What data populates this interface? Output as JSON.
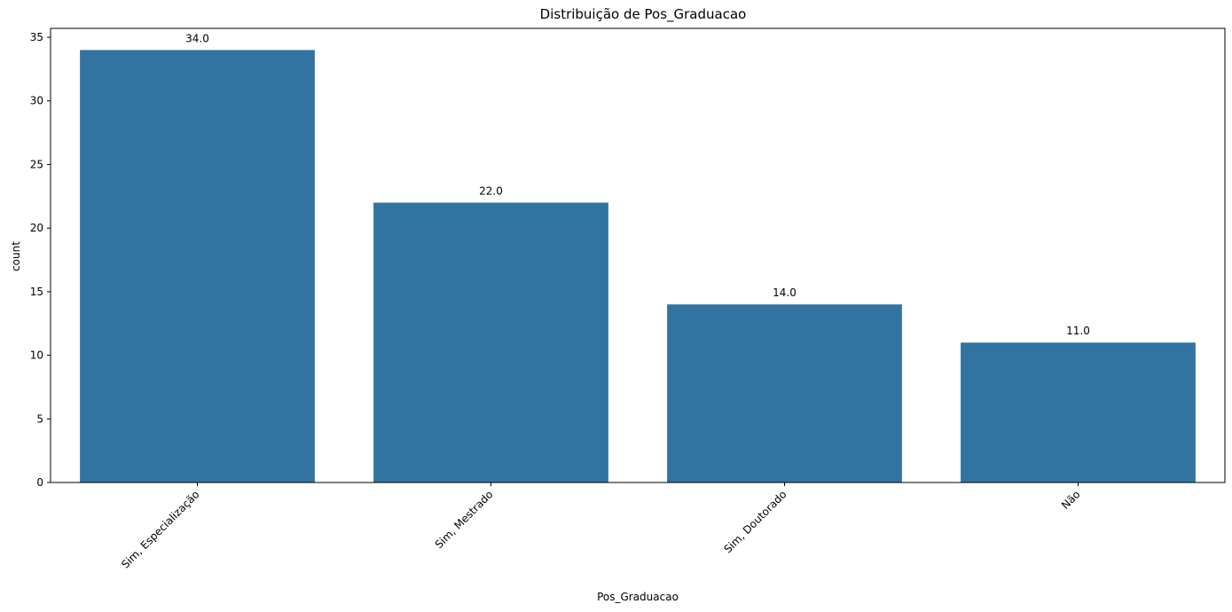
{
  "chart_data": {
    "type": "bar",
    "title": "Distribuição de Pos_Graduacao",
    "xlabel": "Pos_Graduacao",
    "ylabel": "count",
    "categories": [
      "Sim, Especialização",
      "Sim, Mestrado",
      "Sim, Doutorado",
      "Não"
    ],
    "values": [
      34,
      22,
      14,
      11
    ],
    "value_labels": [
      "34.0",
      "22.0",
      "14.0",
      "11.0"
    ],
    "yticks": [
      0,
      5,
      10,
      15,
      20,
      25,
      30,
      35
    ],
    "ylim": [
      0,
      35.7
    ],
    "bar_color": "#3274a1",
    "grid": false,
    "legend": "none"
  }
}
